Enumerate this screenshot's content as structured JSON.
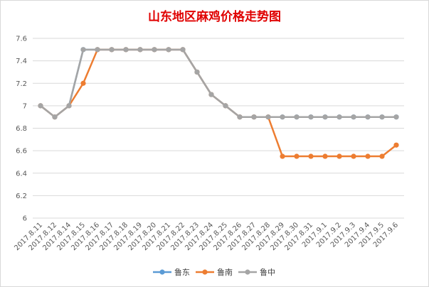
{
  "chart_data": {
    "type": "line",
    "title": "山东地区麻鸡价格走势图",
    "categories": [
      "2017.8.11",
      "2017.8.12",
      "2017.8.14",
      "2017.8.15",
      "2017.8.16",
      "2017.8.17",
      "2017.8.18",
      "2017.8.19",
      "2017.8.20",
      "2017.8.21",
      "2017.8.22",
      "2017.8.23",
      "2017.8.24",
      "2017.8.25",
      "2017.8.26",
      "2017.8.27",
      "2017.8.28",
      "2017.8.29",
      "2017.8.30",
      "2017.8.31",
      "2017.9.1",
      "2017.9.2",
      "2017.9.3",
      "2017.9.4",
      "2017.9.5",
      "2017.9.6"
    ],
    "series": [
      {
        "name": "鲁东",
        "color": "#5b9bd5",
        "values": [
          7,
          6.9,
          7,
          7.5,
          7.5,
          7.5,
          7.5,
          7.5,
          7.5,
          7.5,
          7.5,
          7.3,
          7.1,
          7,
          6.9,
          6.9,
          6.9,
          6.9,
          6.9,
          6.9,
          6.9,
          6.9,
          6.9,
          6.9,
          6.9,
          6.9
        ]
      },
      {
        "name": "鲁南",
        "color": "#ed7d31",
        "values": [
          7,
          6.9,
          7,
          7.2,
          7.5,
          7.5,
          7.5,
          7.5,
          7.5,
          7.5,
          7.5,
          7.3,
          7.1,
          7,
          6.9,
          6.9,
          6.9,
          6.55,
          6.55,
          6.55,
          6.55,
          6.55,
          6.55,
          6.55,
          6.55,
          6.65
        ]
      },
      {
        "name": "鲁中",
        "color": "#a5a5a5",
        "values": [
          7,
          6.9,
          7,
          7.5,
          7.5,
          7.5,
          7.5,
          7.5,
          7.5,
          7.5,
          7.5,
          7.3,
          7.1,
          7,
          6.9,
          6.9,
          6.9,
          6.9,
          6.9,
          6.9,
          6.9,
          6.9,
          6.9,
          6.9,
          6.9,
          6.9
        ]
      }
    ],
    "y_ticks": [
      "7.6",
      "7.4",
      "7.2",
      "7",
      "6.8",
      "6.6",
      "6.4",
      "6.2",
      "6"
    ],
    "ylim": [
      6,
      7.6
    ],
    "xlabel": "",
    "ylabel": "",
    "legend_position": "bottom",
    "grid": "horizontal"
  }
}
